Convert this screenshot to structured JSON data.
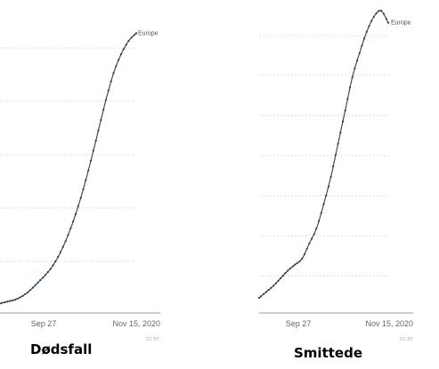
{
  "colors": {
    "line": "#2d3e50",
    "grid": "#dddddd",
    "axis": "#999999",
    "text": "#666666"
  },
  "chart_data": [
    {
      "type": "line",
      "caption": "Dødsfall",
      "xlabel": "",
      "ylabel": "",
      "x_ticks": [
        "Sep 27",
        "Nov 15, 2020"
      ],
      "footer": "CC BY",
      "grid": "horizontal",
      "series": [
        {
          "name": "Europe",
          "color": "#2d3e50",
          "values": [
            0.5,
            0.6,
            0.7,
            0.9,
            1.2,
            1.6,
            2.0,
            2.5,
            3.2,
            4.1,
            5.2,
            6.5,
            8.0,
            9.6,
            11.2,
            12.6,
            13.6,
            14.3,
            14.7
          ]
        }
      ]
    },
    {
      "type": "line",
      "caption": "Smittede",
      "xlabel": "",
      "ylabel": "",
      "x_ticks": [
        "Sep 27",
        "Nov 15, 2020"
      ],
      "footer": "CC BY",
      "grid": "horizontal",
      "series": [
        {
          "name": "Europe",
          "color": "#2d3e50",
          "values": [
            1.0,
            1.4,
            1.8,
            2.3,
            2.8,
            3.2,
            3.6,
            4.6,
            5.6,
            7.2,
            9.0,
            11.2,
            13.4,
            15.6,
            17.2,
            18.6,
            19.6,
            20.0,
            19.2
          ]
        }
      ]
    }
  ]
}
